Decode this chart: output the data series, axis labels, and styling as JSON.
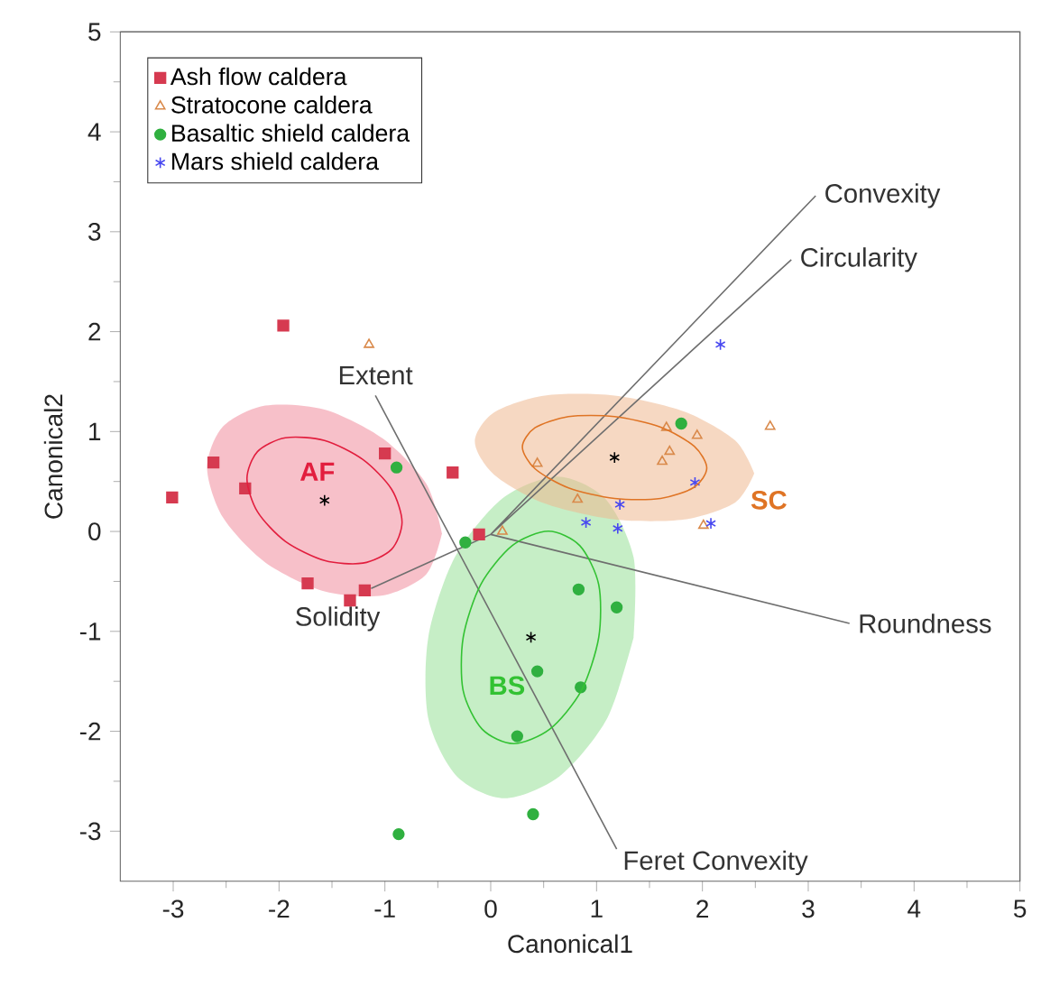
{
  "chart_data": {
    "type": "scatter",
    "xlabel": "Canonical1",
    "ylabel": "Canonical2",
    "xlim": [
      -3.5,
      5
    ],
    "ylim": [
      -3.5,
      5
    ],
    "xticks": [
      -3,
      -2,
      -1,
      0,
      1,
      2,
      3,
      4,
      5
    ],
    "yticks": [
      -3,
      -2,
      -1,
      0,
      1,
      2,
      3,
      4,
      5
    ],
    "legend": "top left",
    "grid": false,
    "series": [
      {
        "type": "area",
        "color": "#f7c0c9",
        "x": [
          -0.46,
          -0.61,
          -1.02,
          -1.57,
          -2.13,
          -2.53,
          -2.68,
          -2.53,
          -2.13,
          -1.57,
          -1.02,
          -0.61
        ],
        "values": [
          -0.02,
          0.48,
          0.93,
          1.22,
          1.26,
          1.05,
          0.64,
          0.14,
          -0.31,
          -0.6,
          -0.64,
          -0.43
        ]
      },
      {
        "type": "area",
        "color": "#c6eec6",
        "x": [
          1.35,
          1.35,
          1.08,
          0.63,
          0.11,
          -0.34,
          -0.59,
          -0.59,
          -0.32,
          0.13,
          0.65,
          1.1
        ],
        "values": [
          -1.06,
          -0.26,
          0.33,
          0.55,
          0.33,
          -0.26,
          -1.06,
          -1.87,
          -2.45,
          -2.67,
          -2.45,
          -1.87
        ]
      },
      {
        "type": "area",
        "color": "#f6d8c2",
        "x": [
          2.49,
          2.31,
          1.83,
          1.17,
          0.51,
          0.03,
          -0.15,
          0.03,
          0.51,
          1.17,
          1.83,
          2.31
        ],
        "values": [
          0.58,
          0.91,
          1.2,
          1.36,
          1.36,
          1.19,
          0.9,
          0.57,
          0.28,
          0.12,
          0.12,
          0.29
        ]
      },
      {
        "type": "line",
        "color": "#6e6e6e",
        "x": [
          3.07,
          0,
          2.84,
          null,
          -1.13,
          0,
          3.39
        ],
        "values": [
          3.36,
          -0.03,
          2.72,
          null,
          -0.57,
          -0.03,
          -0.92
        ]
      },
      {
        "type": "line",
        "color": "#6e6e6e",
        "x": [
          -1.09,
          1.19
        ],
        "values": [
          1.36,
          -3.18
        ]
      },
      {
        "name": "Ash flow caldera",
        "color": "#d63a50",
        "marker": "square",
        "x": [
          -1.96,
          -2.62,
          -2.32,
          -3.01,
          -1.0,
          -0.36,
          -0.11,
          -1.73,
          -1.19,
          -1.33
        ],
        "values": [
          2.06,
          0.69,
          0.43,
          0.34,
          0.78,
          0.59,
          -0.03,
          -0.52,
          -0.59,
          -0.69
        ]
      },
      {
        "name": "Stratocone caldera",
        "color": "#d9894a",
        "marker": "triangle",
        "x": [
          -1.15,
          1.66,
          1.95,
          2.64,
          1.69,
          1.62,
          0.44,
          0.82,
          0.11,
          2.01
        ],
        "values": [
          1.87,
          1.04,
          0.96,
          1.05,
          0.8,
          0.7,
          0.68,
          0.32,
          0.0,
          0.06
        ]
      },
      {
        "name": "Basaltic shield caldera",
        "color": "#30b040",
        "marker": "circle",
        "x": [
          -0.89,
          1.8,
          -0.24,
          0.83,
          1.19,
          0.44,
          0.85,
          0.25,
          0.4,
          -0.87
        ],
        "values": [
          0.64,
          1.08,
          -0.11,
          -0.58,
          -0.76,
          -1.4,
          -1.56,
          -2.05,
          -2.83,
          -3.03
        ]
      },
      {
        "name": "Mars shield caldera",
        "color": "#4848f0",
        "marker": "cross",
        "x": [
          2.17,
          1.93,
          1.22,
          0.9,
          1.2,
          2.08
        ],
        "values": [
          1.87,
          0.49,
          0.27,
          0.09,
          0.03,
          0.08
        ]
      },
      {
        "color": "#000000",
        "marker": "cross",
        "x": [
          -1.57,
          1.17,
          0.38
        ],
        "values": [
          0.31,
          0.74,
          -1.06
        ]
      }
    ],
    "annotations": [
      {
        "text": "Convexity",
        "x": 3.07,
        "y": 3.36
      },
      {
        "text": "Circularity",
        "x": 2.84,
        "y": 2.72
      },
      {
        "text": "Roundness",
        "x": 3.39,
        "y": -0.92
      },
      {
        "text": "Solidity",
        "x": -1.13,
        "y": -0.57
      },
      {
        "text": "Extent",
        "x": -1.09,
        "y": 1.36
      },
      {
        "text": "Feret Convexity",
        "x": 1.19,
        "y": -3.18
      },
      {
        "text": "**AF**",
        "x": -1.57,
        "y": 0.31
      },
      {
        "text": "**SC**",
        "x": 2.31,
        "y": 0.29
      },
      {
        "text": "**BS**",
        "x": 0.38,
        "y": -1.06
      }
    ]
  }
}
